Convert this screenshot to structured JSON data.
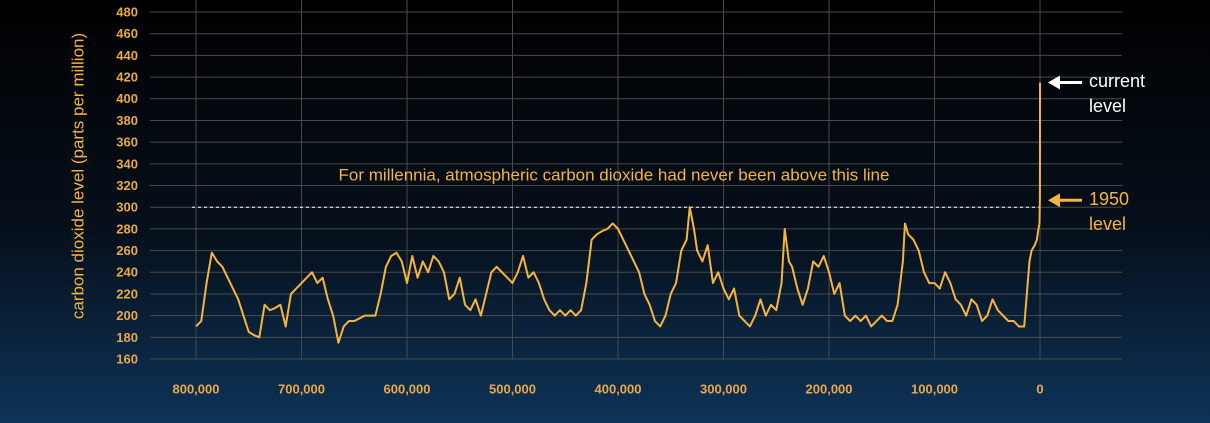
{
  "chart_data": {
    "type": "line",
    "y_label": "carbon dioxide level (parts per million)",
    "annotation": "For millennia, atmospheric carbon dioxide had never been above this line",
    "threshold": 300,
    "current_label": [
      "current",
      "level"
    ],
    "level_1950_label": [
      "1950",
      "level"
    ],
    "color": "#f5b43e",
    "grid": true,
    "xlim": [
      843600,
      -77700
    ],
    "ylim": [
      160,
      480
    ],
    "xticks": [
      {
        "value": 800000,
        "label": "800,000"
      },
      {
        "value": 700000,
        "label": "700,000"
      },
      {
        "value": 600000,
        "label": "600,000"
      },
      {
        "value": 500000,
        "label": "500,000"
      },
      {
        "value": 400000,
        "label": "400,000"
      },
      {
        "value": 300000,
        "label": "300,000"
      },
      {
        "value": 200000,
        "label": "200,000"
      },
      {
        "value": 100000,
        "label": "100,000"
      },
      0
    ],
    "yticks": [
      160,
      180,
      200,
      220,
      240,
      260,
      280,
      300,
      320,
      340,
      360,
      380,
      400,
      420,
      440,
      460,
      480
    ],
    "x": [
      800000,
      795000,
      790000,
      785000,
      780000,
      775000,
      770000,
      765000,
      760000,
      755000,
      750000,
      745000,
      740000,
      735000,
      730000,
      725000,
      720000,
      715000,
      710000,
      705000,
      700000,
      695000,
      690000,
      685000,
      680000,
      675000,
      670000,
      665000,
      660000,
      655000,
      650000,
      640000,
      630000,
      625000,
      620000,
      615000,
      610000,
      605000,
      600000,
      595000,
      590000,
      585000,
      580000,
      575000,
      570000,
      565000,
      560000,
      555000,
      550000,
      545000,
      540000,
      535000,
      530000,
      525000,
      520000,
      515000,
      510000,
      505000,
      500000,
      495000,
      490000,
      485000,
      480000,
      475000,
      470000,
      465000,
      460000,
      455000,
      450000,
      445000,
      440000,
      435000,
      430000,
      425000,
      420000,
      415000,
      410000,
      405000,
      400000,
      395000,
      390000,
      385000,
      380000,
      375000,
      370000,
      365000,
      360000,
      355000,
      350000,
      345000,
      340000,
      335000,
      332000,
      328000,
      325000,
      320000,
      315000,
      310000,
      305000,
      300000,
      295000,
      290000,
      285000,
      280000,
      275000,
      270000,
      265000,
      260000,
      255000,
      250000,
      245000,
      242000,
      238000,
      235000,
      230000,
      225000,
      220000,
      215000,
      210000,
      205000,
      200000,
      195000,
      190000,
      185000,
      180000,
      175000,
      170000,
      165000,
      160000,
      155000,
      150000,
      145000,
      140000,
      135000,
      130000,
      128000,
      125000,
      120000,
      115000,
      110000,
      105000,
      100000,
      95000,
      90000,
      85000,
      80000,
      75000,
      70000,
      65000,
      60000,
      55000,
      50000,
      45000,
      40000,
      35000,
      30000,
      25000,
      20000,
      15000,
      10000,
      8000,
      5000,
      3000,
      1500,
      500,
      100,
      0
    ],
    "values": [
      190,
      195,
      230,
      258,
      250,
      245,
      235,
      225,
      215,
      200,
      185,
      182,
      180,
      210,
      205,
      207,
      210,
      190,
      220,
      225,
      230,
      235,
      240,
      230,
      235,
      215,
      200,
      175,
      190,
      195,
      195,
      200,
      200,
      220,
      245,
      255,
      258,
      250,
      230,
      255,
      235,
      250,
      240,
      255,
      250,
      240,
      215,
      220,
      235,
      210,
      205,
      215,
      200,
      220,
      240,
      245,
      240,
      235,
      230,
      240,
      255,
      235,
      240,
      230,
      215,
      205,
      200,
      205,
      200,
      205,
      200,
      205,
      230,
      270,
      275,
      278,
      280,
      285,
      280,
      270,
      260,
      250,
      240,
      220,
      210,
      195,
      190,
      200,
      220,
      230,
      260,
      270,
      300,
      280,
      260,
      250,
      265,
      230,
      240,
      225,
      215,
      225,
      200,
      195,
      190,
      200,
      215,
      200,
      210,
      205,
      230,
      280,
      250,
      245,
      225,
      210,
      225,
      250,
      245,
      255,
      240,
      220,
      230,
      200,
      195,
      200,
      195,
      200,
      190,
      195,
      200,
      195,
      195,
      210,
      250,
      285,
      275,
      270,
      260,
      240,
      230,
      230,
      225,
      240,
      230,
      215,
      210,
      200,
      215,
      210,
      195,
      200,
      215,
      205,
      200,
      195,
      195,
      190,
      190,
      250,
      260,
      265,
      270,
      280,
      285,
      310,
      415
    ]
  }
}
